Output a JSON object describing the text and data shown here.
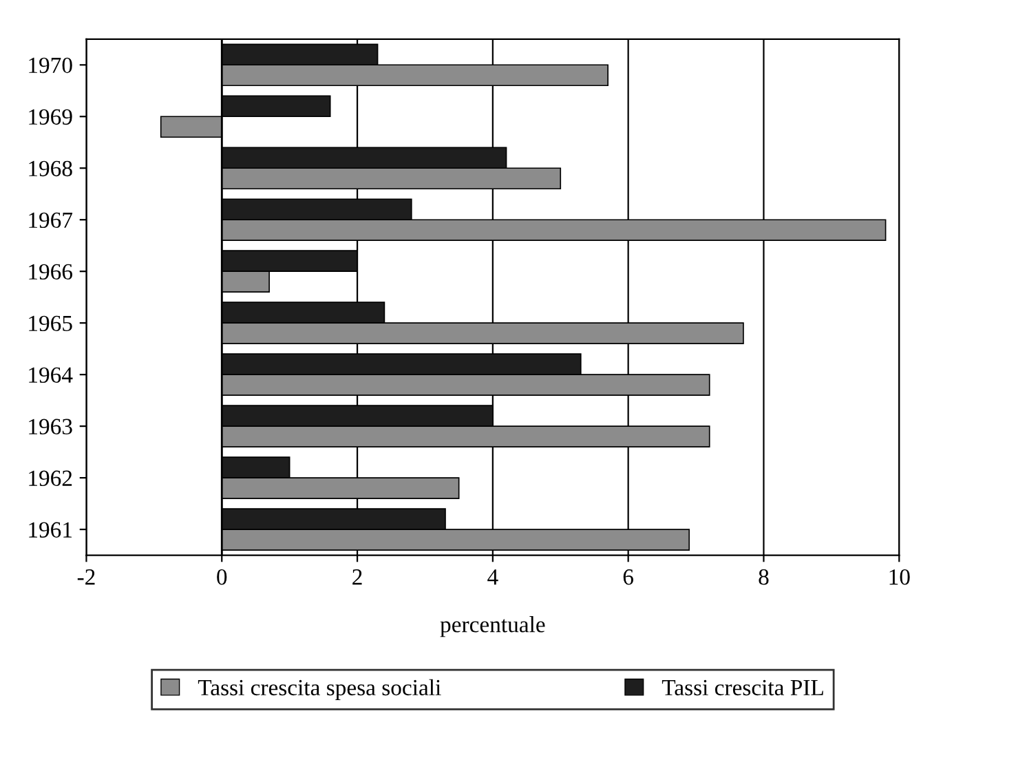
{
  "chart_data": {
    "type": "bar",
    "orientation": "horizontal",
    "xlabel": "percentuale",
    "categories": [
      "1970",
      "1969",
      "1968",
      "1967",
      "1966",
      "1965",
      "1964",
      "1963",
      "1962",
      "1961"
    ],
    "series": [
      {
        "name": "Tassi crescita spesa sociali",
        "color": "#8c8c8c",
        "values": [
          5.7,
          -0.9,
          5.0,
          9.8,
          0.7,
          7.7,
          7.2,
          7.2,
          3.5,
          6.9
        ]
      },
      {
        "name": "Tassi crescita PIL",
        "color": "#1e1e1e",
        "values": [
          2.3,
          1.6,
          4.2,
          2.8,
          2.0,
          2.4,
          5.3,
          4.0,
          1.0,
          3.3
        ]
      }
    ],
    "xlim": [
      -2,
      10
    ],
    "xticks": [
      -2,
      0,
      2,
      4,
      6,
      8,
      10
    ],
    "grid": "x",
    "legend": "bottom"
  }
}
